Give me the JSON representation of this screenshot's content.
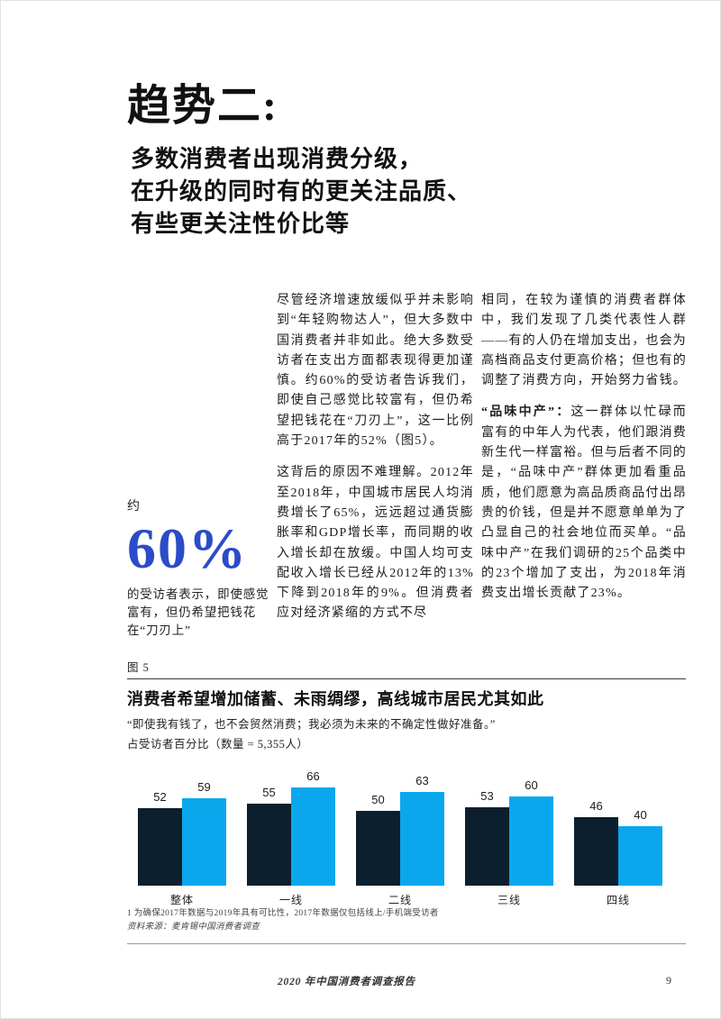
{
  "header": {
    "title": "趋势二:",
    "subtitle": "多数消费者出现消费分级，\n在升级的同时有的更关注品质、\n有些更关注性价比等"
  },
  "body": {
    "col1_p1": "尽管经济增速放缓似乎并未影响到“年轻购物达人”，但大多数中国消费者并非如此。绝大多数受访者在支出方面都表现得更加谨慎。约60%的受访者告诉我们，即使自己感觉比较富有，但仍希望把钱花在“刀刃上”，这一比例高于2017年的52%（图5）。",
    "col1_p2": "这背后的原因不难理解。2012年至2018年，中国城市居民人均消费增长了65%，远远超过通货膨胀率和GDP增长率，而同期的收入增长却在放缓。中国人均可支配收入增长已经从2012年的13%下降到2018年的9%。但消费者应对经济紧缩的方式不尽",
    "col2_p1": "相同，在较为谨慎的消费者群体中，我们发现了几类代表性人群——有的人仍在增加支出，也会为高档商品支付更高价格；但也有的调整了消费方向，开始努力省钱。",
    "col2_p2_lead": "“品味中产”：",
    "col2_p2_rest": "这一群体以忙碌而富有的中年人为代表，他们跟消费新生代一样富裕。但与后者不同的是，“品味中产”群体更加看重品质，他们愿意为高品质商品付出昂贵的价钱，但是并不愿意单单为了凸显自己的社会地位而买单。“品味中产”在我们调研的25个品类中的23个增加了支出，为2018年消费支出增长贡献了23%。"
  },
  "stat": {
    "prefix": "约",
    "value": "60%",
    "caption": "的受访者表示，即使感觉富有，但仍希望把钱花在“刀刃上”",
    "color": "#2b4bc8"
  },
  "figure": {
    "label": "图 5",
    "footnote": "1 为确保2017年数据与2019年具有可比性，2017年数据仅包括线上/手机端受访者",
    "source": "资料来源：麦肯锡中国消费者调查"
  },
  "chart_data": {
    "type": "bar",
    "title": "消费者希望增加储蓄、未雨绸缪，高线城市居民尤其如此",
    "quote": "“即使我有钱了，也不会贸然消费；我必须为未来的不确定性做好准备。”",
    "unit_label": "占受访者百分比（数量 = 5,355人）",
    "categories": [
      "整体",
      "一线",
      "二线",
      "三线",
      "四线"
    ],
    "series": [
      {
        "name": "series-1-dark",
        "color": "#0c1f2e",
        "values": [
          52,
          55,
          50,
          53,
          46
        ]
      },
      {
        "name": "series-2-blue",
        "color": "#0ba7ec",
        "values": [
          59,
          66,
          63,
          60,
          40
        ]
      }
    ],
    "ylim": [
      0,
      70
    ],
    "value_labels": true,
    "legend": "none",
    "grid": false
  },
  "footer": {
    "report_title": "2020 年中国消费者调查报告",
    "page_number": "9"
  }
}
